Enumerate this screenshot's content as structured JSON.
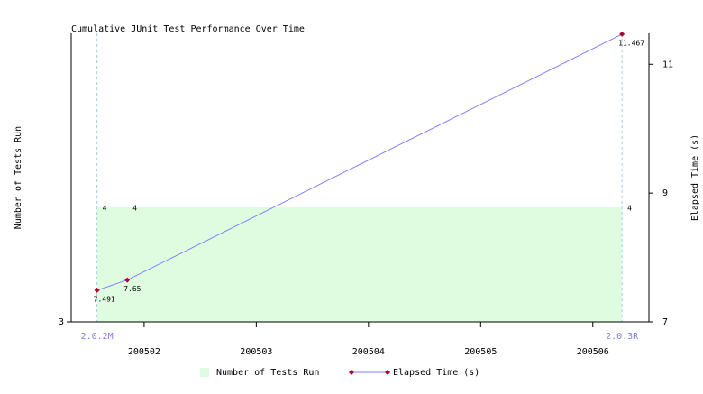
{
  "chart_data": {
    "type": "combo",
    "title": "Cumulative JUnit Test Performance Over Time",
    "y_label": "Number of Tests Run",
    "y2_label": "Elapsed Time (s)",
    "x": [
      1.58,
      1.85,
      6.26
    ],
    "xlim": [
      1.35,
      6.5
    ],
    "xticks": [
      {
        "value": 2,
        "label": "200502"
      },
      {
        "value": 3,
        "label": "200503"
      },
      {
        "value": 4,
        "label": "200504"
      },
      {
        "value": 5,
        "label": "200505"
      },
      {
        "value": 6,
        "label": "200506"
      }
    ],
    "ylim": [
      3,
      5.52
    ],
    "yticks": [
      3
    ],
    "y2lim": [
      7,
      11.48
    ],
    "y2ticks": [
      7,
      9,
      11
    ],
    "annotations": [
      {
        "x": 1.58,
        "label": "2.0.2M"
      },
      {
        "x": 6.26,
        "label": "2.0.3R"
      }
    ],
    "series": [
      {
        "name": "Number of Tests Run",
        "type": "area",
        "axis": "y",
        "color": "#e0fce0",
        "values": [
          4,
          4,
          4
        ]
      },
      {
        "name": "Elapsed Time (s)",
        "type": "line",
        "axis": "y2",
        "color": "#8080ff",
        "marker_color": "#b00030",
        "values": [
          7.491,
          7.65,
          11.467
        ]
      }
    ]
  }
}
